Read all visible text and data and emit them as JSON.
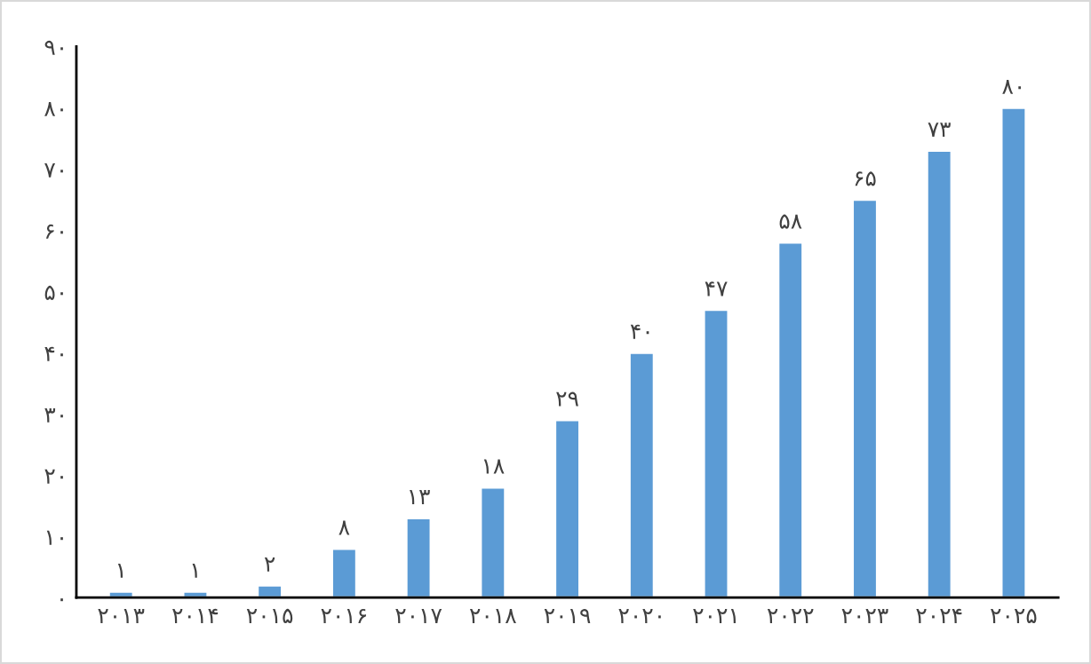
{
  "chart_data": {
    "type": "bar",
    "categories": [
      "۲۰۱۳",
      "۲۰۱۴",
      "۲۰۱۵",
      "۲۰۱۶",
      "۲۰۱۷",
      "۲۰۱۸",
      "۲۰۱۹",
      "۲۰۲۰",
      "۲۰۲۱",
      "۲۰۲۲",
      "۲۰۲۳",
      "۲۰۲۴",
      "۲۰۲۵"
    ],
    "values": [
      1,
      1,
      2,
      8,
      13,
      18,
      29,
      40,
      47,
      58,
      65,
      73,
      80
    ],
    "value_labels": [
      "۱",
      "۱",
      "۲",
      "۸",
      "۱۳",
      "۱۸",
      "۲۹",
      "۴۰",
      "۴۷",
      "۵۸",
      "۶۵",
      "۷۳",
      "۸۰"
    ],
    "color": "#5b9bd5",
    "ylim": [
      0,
      90
    ],
    "yticks": [
      {
        "value": 0,
        "label": "۰"
      },
      {
        "value": 10,
        "label": "۱۰"
      },
      {
        "value": 20,
        "label": "۲۰"
      },
      {
        "value": 30,
        "label": "۳۰"
      },
      {
        "value": 40,
        "label": "۴۰"
      },
      {
        "value": 50,
        "label": "۵۰"
      },
      {
        "value": 60,
        "label": "۶۰"
      },
      {
        "value": 70,
        "label": "۷۰"
      },
      {
        "value": 80,
        "label": "۸۰"
      },
      {
        "value": 90,
        "label": "۹۰"
      }
    ],
    "grid": false,
    "legend": false
  }
}
